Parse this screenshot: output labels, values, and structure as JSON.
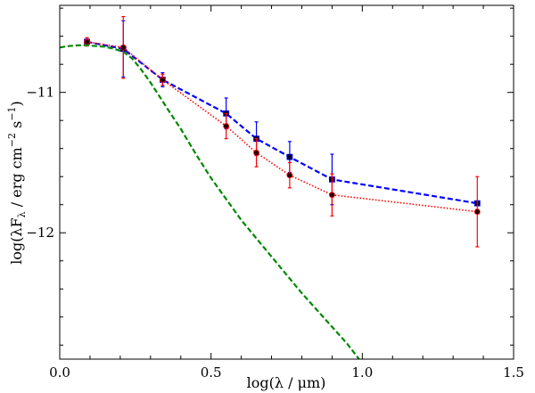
{
  "chart_data": {
    "type": "line",
    "xlabel": "log(λ / μm)",
    "ylabel": {
      "prefix": "log(λF",
      "subscript": "λ",
      "middle": " / erg cm",
      "exp1": "−2",
      "middle2": " s",
      "exp2": "−1",
      "suffix": ")"
    },
    "xlim": [
      0.0,
      1.5
    ],
    "ylim": [
      -12.9,
      -10.38
    ],
    "xticks": [
      0.0,
      0.5,
      1.0,
      1.5
    ],
    "xtick_labels": [
      "0.0",
      "0.5",
      "1.0",
      "1.5"
    ],
    "yticks": [
      -11,
      -12
    ],
    "ytick_labels": [
      "−11",
      "−12"
    ],
    "grid": false,
    "series": [
      {
        "style": "dashed",
        "color": "#0000ff",
        "marker": "square",
        "x": [
          0.09,
          0.21,
          0.34,
          0.55,
          0.65,
          0.76,
          0.9,
          1.38
        ],
        "y": [
          -10.64,
          -10.69,
          -10.91,
          -11.15,
          -11.33,
          -11.46,
          -11.62,
          -11.79
        ],
        "yerr": [
          0.02,
          0.2,
          0.05,
          0.11,
          0.12,
          0.11,
          0.18,
          0.01
        ]
      },
      {
        "style": "dotted",
        "color": "#ff0000",
        "marker": "circle",
        "x": [
          0.09,
          0.21,
          0.34,
          0.55,
          0.65,
          0.76,
          0.9,
          1.38
        ],
        "y": [
          -10.64,
          -10.68,
          -10.91,
          -11.24,
          -11.43,
          -11.59,
          -11.73,
          -11.85
        ],
        "yerr": [
          0.03,
          0.22,
          0.04,
          0.09,
          0.1,
          0.09,
          0.15,
          0.25
        ]
      },
      {
        "style": "dashed",
        "color": "#008800",
        "marker": "none",
        "x": [
          0.0,
          0.03,
          0.06,
          0.09,
          0.12,
          0.15,
          0.18,
          0.21,
          0.24,
          0.27,
          0.3,
          0.33,
          0.36,
          0.4,
          0.45,
          0.5,
          0.55,
          0.6,
          0.65,
          0.7,
          0.75,
          0.8,
          0.85,
          0.9,
          0.95,
          1.0,
          1.05
        ],
        "y": [
          -10.68,
          -10.67,
          -10.665,
          -10.665,
          -10.67,
          -10.675,
          -10.69,
          -10.71,
          -10.76,
          -10.84,
          -10.93,
          -11.03,
          -11.13,
          -11.26,
          -11.44,
          -11.61,
          -11.76,
          -11.91,
          -12.04,
          -12.17,
          -12.3,
          -12.43,
          -12.55,
          -12.67,
          -12.79,
          -12.93,
          -13.07
        ]
      }
    ]
  }
}
